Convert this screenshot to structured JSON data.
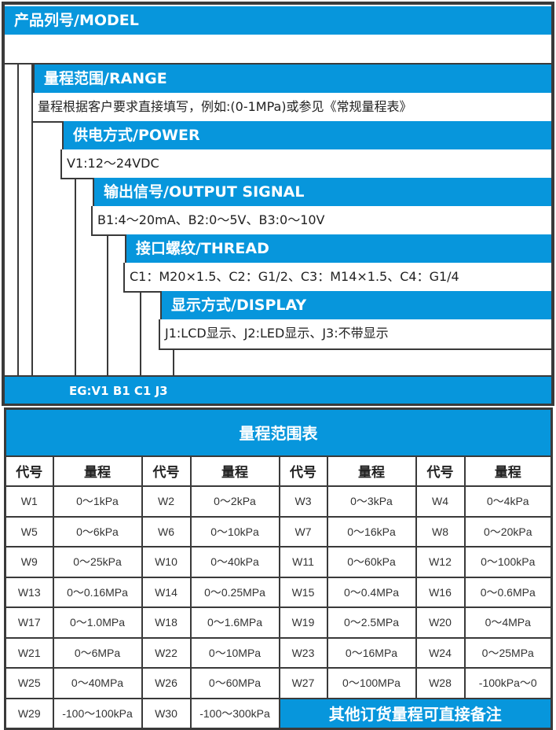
{
  "model": {
    "title": "产品列号/MODEL",
    "value": ""
  },
  "sections": [
    {
      "title": "量程范围/RANGE",
      "text": "量程根据客户要求直接填写，例如:(0-1MPa)或参见《常规量程表》"
    },
    {
      "title": "供电方式/POWER",
      "text": "V1:12～24VDC"
    },
    {
      "title": "输出信号/OUTPUT SIGNAL",
      "text": "B1:4～20mA、B2:0～5V、B3:0～10V"
    },
    {
      "title": "接口螺纹/THREAD",
      "text": "C1：M20×1.5、C2：G1/2、C3：M14×1.5、C4：G1/4"
    },
    {
      "title": "显示方式/DISPLAY",
      "text": "J1:LCD显示、J2:LED显示、J3:不带显示"
    }
  ],
  "example": "EG:V1 B1 C1 J3",
  "colors": {
    "accent": "#0796dc",
    "border": "#3a3a3a"
  },
  "range_table": {
    "title": "量程范围表",
    "headers": [
      "代号",
      "量程",
      "代号",
      "量程",
      "代号",
      "量程",
      "代号",
      "量程"
    ],
    "rows": [
      [
        "W1",
        "0～1kPa",
        "W2",
        "0～2kPa",
        "W3",
        "0～3kPa",
        "W4",
        "0～4kPa"
      ],
      [
        "W5",
        "0～6kPa",
        "W6",
        "0～10kPa",
        "W7",
        "0～16kPa",
        "W8",
        "0～20kPa"
      ],
      [
        "W9",
        "0～25kPa",
        "W10",
        "0～40kPa",
        "W11",
        "0～60kPa",
        "W12",
        "0～100kPa"
      ],
      [
        "W13",
        "0～0.16MPa",
        "W14",
        "0～0.25MPa",
        "W15",
        "0～0.4MPa",
        "W16",
        "0～0.6MPa"
      ],
      [
        "W17",
        "0～1.0MPa",
        "W18",
        "0～1.6MPa",
        "W19",
        "0～2.5MPa",
        "W20",
        "0～4MPa"
      ],
      [
        "W21",
        "0～6MPa",
        "W22",
        "0～10MPa",
        "W23",
        "0～16MPa",
        "W24",
        "0～25MPa"
      ],
      [
        "W25",
        "0～40MPa",
        "W26",
        "0～60MPa",
        "W27",
        "0～100MPa",
        "W28",
        "-100kPa～0"
      ],
      [
        "W29",
        "-100～100kPa",
        "W30",
        "-100～300kPa"
      ]
    ],
    "note": "其他订货量程可直接备注"
  }
}
